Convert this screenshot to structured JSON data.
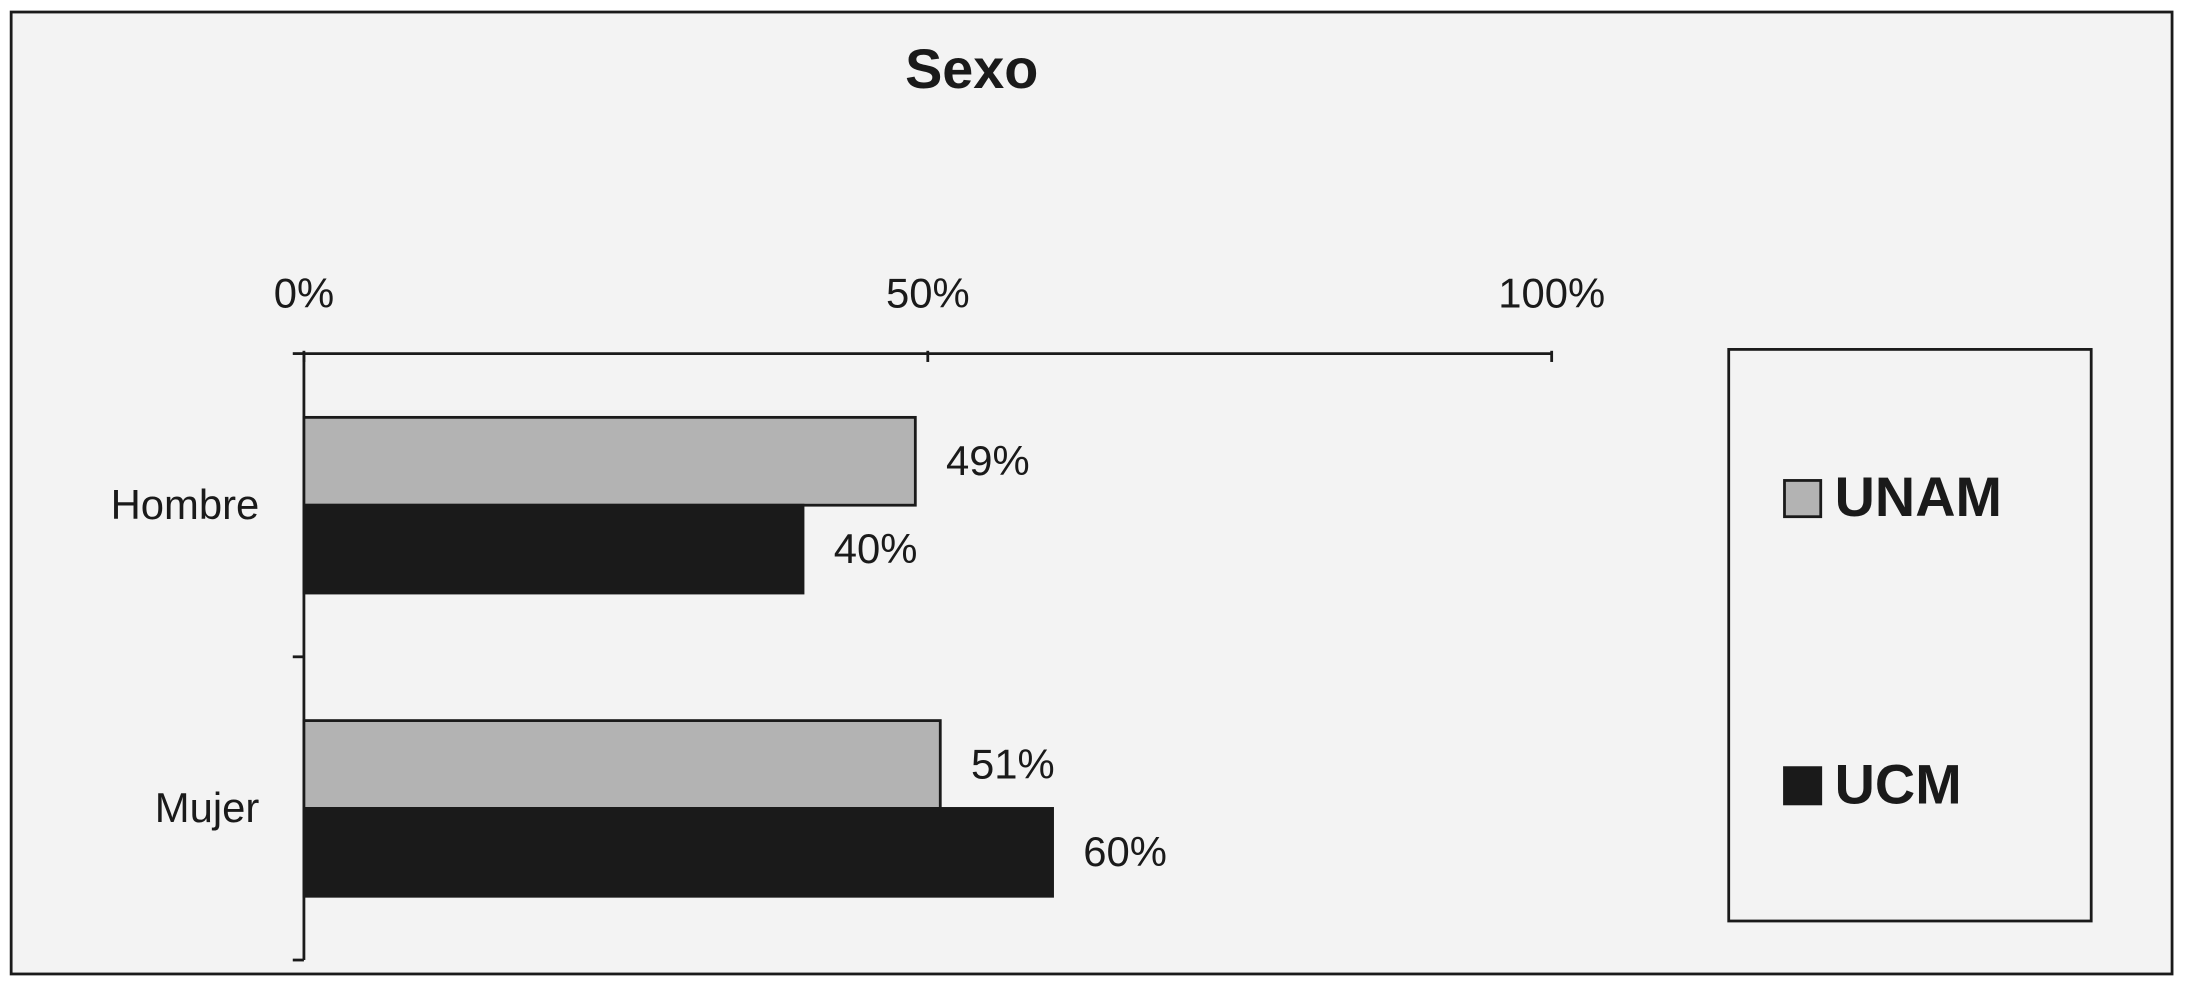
{
  "chart_data": {
    "type": "bar",
    "orientation": "horizontal",
    "title": "Sexo",
    "categories": [
      "Hombre",
      "Mujer"
    ],
    "series": [
      {
        "name": "UNAM",
        "color": "#b3b3b3",
        "values": [
          49,
          51
        ],
        "value_labels": [
          "49%",
          "51%"
        ]
      },
      {
        "name": "UCM",
        "color": "#1a1a1a",
        "values": [
          40,
          60
        ],
        "value_labels": [
          "40%",
          "60%"
        ]
      }
    ],
    "xlim": [
      0,
      100
    ],
    "xticks": [
      {
        "value": 0,
        "label": "0%"
      },
      {
        "value": 50,
        "label": "50%"
      },
      {
        "value": 100,
        "label": "100%"
      }
    ],
    "grid": false,
    "legend": "right"
  }
}
